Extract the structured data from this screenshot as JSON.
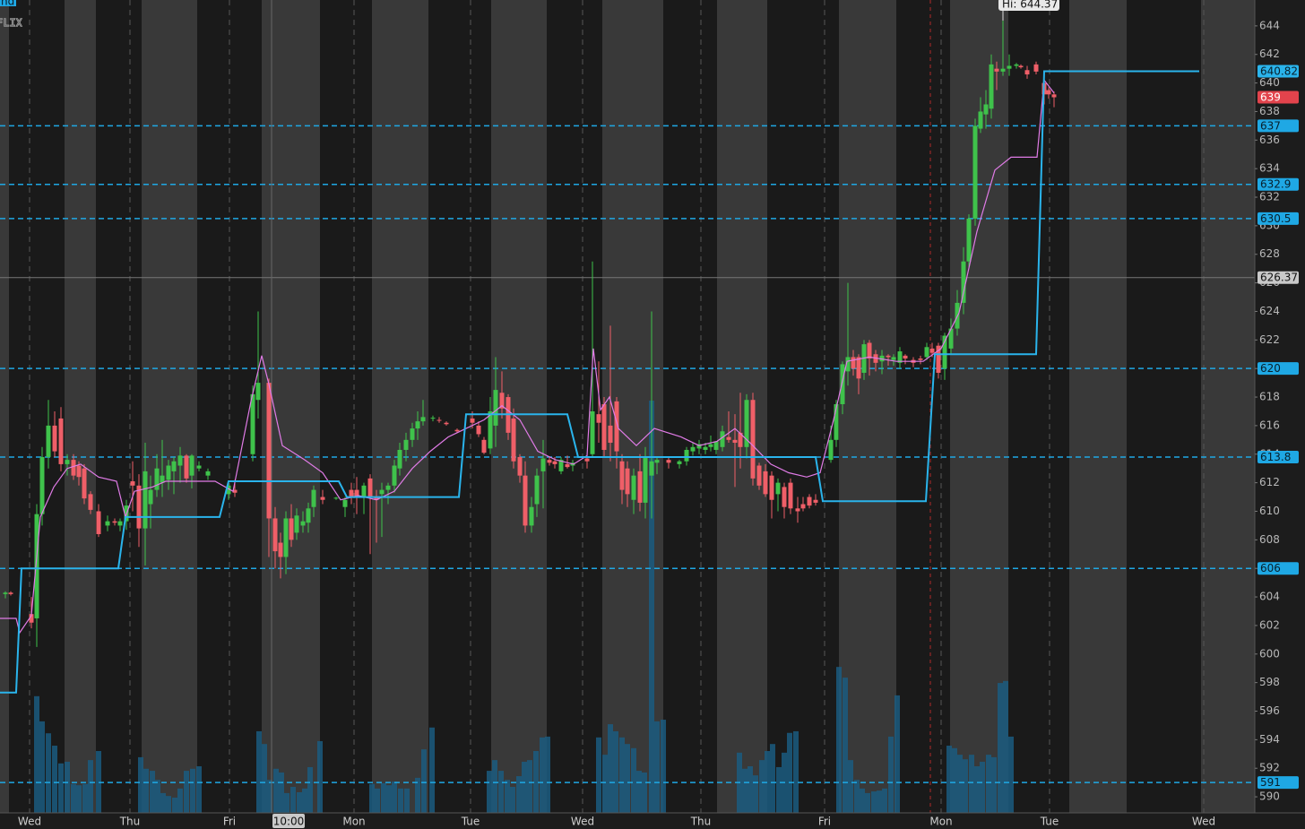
{
  "chart_data": {
    "type": "candlestick",
    "symbol": "FLIX",
    "corner_badge": "nd",
    "xlim": [
      0,
      140
    ],
    "xticks": [
      {
        "value": 3.3,
        "label": "Wed"
      },
      {
        "value": 14.5,
        "label": "Thu"
      },
      {
        "value": 25.6,
        "label": "Fri"
      },
      {
        "value": 39.5,
        "label": "Mon"
      },
      {
        "value": 52.5,
        "label": "Tue"
      },
      {
        "value": 65.0,
        "label": "Wed"
      },
      {
        "value": 78.2,
        "label": "Thu"
      },
      {
        "value": 92.0,
        "label": "Fri"
      },
      {
        "value": 105.0,
        "label": "Mon"
      },
      {
        "value": 117.1,
        "label": "Tue"
      },
      {
        "value": 134.3,
        "label": "Wed"
      }
    ],
    "ylim": [
      588.875,
      645.8125
    ],
    "yticks": [
      590,
      592,
      594,
      596,
      598,
      600,
      602,
      604,
      606,
      608,
      610,
      612,
      614,
      616,
      618,
      620,
      622,
      624,
      626,
      628,
      630,
      632,
      634,
      636,
      638,
      640,
      642,
      644
    ],
    "up_color": "#3fc24b",
    "down_color": "#ef5f68",
    "candles": {
      "x": [
        0.6,
        1.2,
        3.5,
        4.1,
        4.7,
        5.4,
        6.1,
        6.8,
        7.5,
        8.2,
        8.8,
        9.4,
        10.1,
        11.0,
        12.0,
        12.8,
        13.4,
        14.1,
        14.8,
        15.5,
        16.2,
        16.8,
        17.5,
        18.1,
        18.8,
        19.4,
        20.1,
        20.8,
        21.4,
        22.2,
        23.2,
        25.5,
        26.2,
        28.2,
        28.8,
        30.0,
        30.7,
        31.3,
        31.9,
        32.5,
        33.1,
        33.8,
        34.4,
        35.0,
        36.0,
        37.5,
        38.5,
        39.2,
        39.8,
        40.6,
        41.3,
        42.0,
        42.6,
        43.3,
        44.0,
        44.6,
        45.3,
        46.0,
        46.6,
        47.2,
        48.3,
        49.0,
        49.8,
        51.0,
        52.7,
        53.4,
        54.0,
        54.7,
        55.3,
        56.0,
        56.7,
        57.3,
        58.0,
        58.6,
        59.3,
        59.9,
        60.6,
        61.3,
        61.9,
        62.6,
        63.3,
        63.9,
        65.5,
        66.1,
        66.8,
        67.4,
        68.1,
        68.8,
        69.4,
        70.0,
        70.7,
        71.4,
        72.0,
        72.7,
        73.3,
        74.6,
        75.8,
        76.6,
        77.3,
        78.0,
        78.7,
        79.3,
        79.9,
        80.6,
        81.3,
        82.0,
        82.6,
        83.3,
        84.0,
        84.7,
        85.4,
        86.1,
        86.8,
        87.5,
        88.2,
        89.0,
        89.6,
        90.3,
        91.0,
        92.7,
        93.3,
        94.0,
        94.6,
        95.2,
        95.8,
        96.4,
        97.0,
        97.7,
        98.4,
        99.1,
        99.7,
        100.4,
        101.0,
        101.9,
        102.7,
        103.4,
        104.0,
        104.7,
        105.4,
        106.1,
        106.8,
        107.5,
        108.1,
        108.8,
        109.4,
        110.0,
        110.6,
        111.2,
        111.9,
        112.6,
        113.4,
        113.9,
        114.6,
        115.6,
        116.5,
        117.0,
        117.6
      ],
      "open": [
        604.2,
        604.3,
        602.8,
        602.5,
        609.8,
        613.8,
        616.0,
        616.5,
        613.3,
        613.6,
        613.2,
        613.0,
        611.2,
        610.0,
        609.0,
        609.3,
        609.0,
        609.3,
        612.1,
        611.8,
        608.8,
        610.5,
        611.5,
        612.0,
        612.2,
        612.8,
        613.2,
        613.9,
        612.5,
        613.0,
        612.5,
        611.2,
        611.5,
        614.0,
        617.8,
        619.0,
        609.5,
        607.8,
        606.8,
        609.5,
        608.5,
        609.0,
        609.2,
        610.3,
        611.0,
        610.9,
        610.3,
        611.5,
        611.5,
        611.0,
        612.3,
        611.0,
        611.2,
        611.5,
        611.8,
        613.0,
        614.3,
        615.0,
        615.8,
        616.3,
        616.5,
        616.4,
        616.2,
        615.7,
        616.5,
        616.0,
        615.0,
        614.4,
        616.0,
        618.3,
        618.0,
        616.5,
        613.8,
        612.5,
        609.0,
        610.5,
        612.8,
        613.6,
        613.5,
        612.8,
        613.3,
        613.2,
        613.7,
        614.0,
        616.8,
        617.5,
        616.0,
        617.7,
        613.5,
        613.0,
        610.8,
        612.8,
        610.6,
        612.5,
        613.4,
        613.6,
        613.3,
        613.5,
        614.2,
        614.4,
        614.3,
        614.5,
        614.3,
        614.5,
        615.2,
        615.0,
        615.5,
        614.5,
        617.8,
        613.2,
        612.8,
        612.5,
        611.2,
        611.7,
        612.0,
        610.2,
        610.5,
        611.0,
        610.8,
        613.6,
        615.0,
        617.5,
        619.8,
        620.8,
        620.8,
        619.7,
        621.8,
        621.0,
        620.5,
        620.9,
        620.6,
        620.4,
        620.9,
        620.6,
        620.7,
        620.8,
        621.4,
        621.6,
        620.0,
        621.4,
        622.8,
        624.6,
        627.5,
        630.5,
        636.8,
        637.8,
        638.2,
        641.0,
        640.8,
        641.0,
        641.2,
        641.2,
        640.9,
        641.3,
        640.0,
        639.5,
        639.2
      ],
      "high": [
        604.4,
        604.4,
        604.0,
        610.5,
        614.5,
        617.8,
        617.0,
        617.3,
        614.0,
        614.0,
        613.5,
        613.3,
        611.4,
        610.5,
        609.7,
        609.5,
        609.5,
        610.8,
        613.5,
        612.6,
        614.8,
        612.5,
        614.0,
        615.0,
        613.6,
        613.8,
        614.5,
        614.0,
        614.0,
        613.5,
        613.0,
        612.0,
        612.2,
        618.8,
        624.0,
        619.3,
        610.3,
        608.5,
        610.0,
        610.5,
        610.2,
        610.0,
        610.6,
        611.8,
        611.5,
        611.0,
        611.0,
        612.0,
        612.4,
        612.0,
        612.6,
        611.5,
        612.0,
        612.0,
        613.6,
        614.8,
        615.5,
        616.2,
        617.0,
        617.8,
        616.7,
        616.6,
        616.3,
        615.8,
        617.0,
        616.3,
        615.2,
        618.0,
        620.8,
        619.8,
        618.2,
        617.2,
        614.0,
        613.5,
        611.0,
        613.0,
        615.0,
        613.8,
        613.8,
        613.8,
        613.9,
        613.6,
        614.0,
        627.5,
        620.5,
        618.0,
        623.0,
        618.0,
        614.0,
        613.5,
        613.0,
        614.0,
        614.5,
        624.0,
        613.8,
        613.8,
        613.6,
        614.5,
        614.8,
        615.0,
        614.8,
        615.3,
        614.8,
        616.0,
        617.0,
        616.8,
        618.3,
        618.2,
        618.3,
        613.4,
        613.3,
        612.8,
        612.3,
        612.0,
        612.3,
        611.0,
        611.0,
        611.2,
        611.2,
        616.0,
        617.8,
        620.5,
        626.0,
        621.3,
        621.0,
        622.0,
        622.0,
        621.3,
        621.3,
        621.0,
        621.0,
        621.5,
        621.0,
        620.8,
        620.9,
        621.8,
        621.8,
        621.8,
        622.5,
        623.5,
        625.5,
        628.5,
        630.8,
        637.5,
        639.0,
        639.5,
        642.0,
        641.5,
        644.37,
        642.0,
        641.4,
        641.3,
        641.2,
        641.5,
        640.6,
        639.7,
        639.4
      ],
      "low": [
        603.9,
        604.1,
        601.8,
        600.5,
        609.0,
        613.0,
        613.8,
        612.8,
        612.5,
        612.2,
        611.8,
        610.5,
        609.8,
        608.2,
        608.6,
        609.0,
        608.6,
        608.7,
        610.0,
        607.5,
        606.2,
        608.8,
        611.0,
        611.0,
        611.5,
        611.2,
        612.0,
        612.0,
        611.6,
        612.8,
        612.2,
        610.8,
        611.0,
        613.5,
        616.5,
        606.8,
        606.0,
        605.3,
        605.6,
        607.5,
        608.0,
        608.5,
        608.5,
        609.6,
        610.5,
        610.8,
        609.6,
        610.5,
        609.8,
        609.8,
        607.0,
        607.8,
        608.2,
        610.5,
        611.3,
        612.5,
        613.5,
        614.5,
        615.0,
        616.0,
        616.3,
        616.2,
        616.0,
        615.5,
        615.8,
        615.2,
        614.0,
        614.0,
        614.5,
        616.5,
        615.0,
        613.0,
        612.0,
        608.5,
        608.5,
        609.6,
        610.2,
        613.2,
        613.0,
        612.6,
        613.0,
        612.8,
        613.0,
        613.8,
        614.8,
        613.8,
        613.5,
        613.0,
        610.5,
        610.3,
        609.8,
        610.0,
        609.5,
        609.5,
        612.6,
        613.0,
        613.0,
        613.2,
        613.9,
        614.0,
        614.0,
        614.2,
        614.0,
        614.2,
        614.8,
        611.7,
        613.0,
        613.7,
        611.8,
        611.5,
        611.0,
        609.5,
        610.0,
        609.5,
        609.8,
        609.2,
        610.0,
        610.2,
        610.4,
        613.4,
        614.5,
        616.8,
        618.8,
        619.5,
        618.2,
        619.2,
        619.5,
        619.8,
        619.6,
        620.2,
        620.2,
        620.0,
        620.3,
        620.1,
        620.3,
        620.6,
        620.8,
        619.3,
        619.2,
        621.0,
        622.3,
        623.8,
        627.0,
        630.0,
        636.5,
        636.8,
        637.5,
        639.5,
        640.5,
        640.5,
        641.0,
        641.0,
        640.3,
        640.6,
        638.5,
        638.9,
        638.3
      ],
      "close": [
        604.3,
        604.2,
        602.2,
        609.8,
        613.8,
        616.0,
        614.2,
        613.3,
        613.6,
        612.5,
        612.4,
        610.9,
        610.1,
        608.4,
        609.3,
        609.2,
        609.3,
        610.4,
        611.8,
        608.8,
        612.8,
        611.5,
        613.0,
        612.5,
        613.2,
        613.5,
        613.9,
        612.3,
        613.9,
        613.2,
        612.8,
        611.8,
        611.3,
        618.2,
        619.0,
        609.5,
        607.2,
        606.8,
        609.5,
        608.0,
        609.7,
        609.3,
        610.2,
        611.5,
        610.8,
        610.95,
        610.8,
        611.0,
        611.0,
        611.8,
        611.0,
        610.8,
        611.5,
        611.8,
        613.2,
        614.3,
        615.0,
        615.8,
        616.3,
        616.6,
        616.55,
        616.35,
        616.1,
        615.6,
        616.2,
        615.4,
        614.1,
        617.0,
        618.5,
        617.2,
        615.5,
        613.5,
        612.5,
        609.0,
        610.3,
        612.5,
        613.7,
        613.4,
        613.3,
        613.6,
        613.1,
        613.4,
        613.5,
        617.0,
        616.2,
        614.3,
        614.8,
        614.2,
        611.5,
        611.2,
        612.5,
        610.6,
        613.8,
        613.5,
        613.6,
        613.4,
        613.5,
        614.3,
        614.5,
        614.7,
        614.5,
        614.7,
        614.9,
        615.6,
        615.0,
        614.8,
        614.5,
        617.8,
        612.3,
        611.8,
        611.2,
        610.8,
        612.0,
        610.3,
        610.2,
        610.0,
        610.2,
        610.4,
        610.6,
        615.0,
        617.5,
        620.3,
        620.8,
        620.0,
        619.3,
        621.7,
        620.7,
        620.4,
        620.9,
        620.8,
        620.8,
        621.2,
        620.7,
        620.4,
        620.6,
        621.5,
        621.1,
        619.7,
        622.3,
        622.8,
        624.6,
        627.5,
        630.5,
        637.0,
        638.0,
        638.5,
        641.3,
        640.8,
        641.0,
        641.2,
        641.3,
        641.1,
        640.6,
        640.8,
        639.2,
        639.2,
        639.0
      ]
    },
    "overlays": [
      {
        "color": "#e07be6",
        "width": 1.2,
        "x": [
          0,
          1.8,
          2.2,
          3.5,
          4.5,
          6.0,
          7.5,
          9.0,
          11.0,
          13.0,
          14.0,
          15.0,
          17.0,
          18.5,
          21.0,
          24.0,
          26.0,
          28.0,
          29.2,
          30.0,
          31.5,
          34.0,
          36.0,
          38.0,
          40.0,
          42.0,
          44.0,
          46.0,
          48.0,
          50.0,
          52.0,
          54.0,
          56.0,
          58.0,
          60.0,
          62.0,
          64.0,
          65.5,
          66.2,
          67.0,
          68.0,
          69.0,
          71.0,
          73.0,
          76.0,
          78.0,
          80.0,
          82.0,
          84.0,
          86.0,
          88.0,
          90.0,
          91.5,
          93.0,
          94.5,
          97.0,
          100.0,
          103.0,
          105.0,
          107.0,
          109.0,
          111.0,
          112.8,
          115.7,
          116.5,
          117.6
        ],
        "values": [
          602.5,
          602.5,
          601.5,
          602.7,
          609.6,
          611.7,
          613.0,
          613.3,
          612.4,
          612.1,
          609.6,
          611.4,
          611.7,
          612.1,
          612.1,
          612.1,
          611.4,
          617.7,
          620.9,
          618.9,
          614.6,
          613.6,
          612.7,
          610.8,
          611.1,
          610.8,
          611.4,
          613.0,
          614.2,
          615.2,
          615.8,
          616.4,
          617.4,
          616.4,
          614.2,
          613.6,
          613.3,
          613.9,
          621.4,
          617.1,
          618.0,
          615.8,
          614.6,
          615.8,
          615.2,
          614.6,
          614.9,
          615.8,
          614.6,
          613.3,
          612.7,
          612.4,
          612.7,
          616.4,
          620.5,
          620.8,
          620.5,
          620.5,
          621.4,
          623.9,
          629.6,
          633.9,
          634.8,
          634.8,
          640.2,
          639.3
        ]
      },
      {
        "color": "#2ab4ec",
        "width": 2,
        "x": [
          0,
          1.8,
          2.4,
          13.2,
          14.0,
          24.5,
          25.5,
          37.8,
          38.7,
          51.2,
          52.0,
          63.3,
          64.5,
          91.0,
          91.8,
          103.3,
          104.3,
          115.6,
          116.5,
          133.8
        ],
        "values": [
          597.3,
          597.3,
          606,
          606,
          609.6,
          609.6,
          612.1,
          612.1,
          611.0,
          611.0,
          616.8,
          616.8,
          613.8,
          613.8,
          610.7,
          610.7,
          621.0,
          621.0,
          640.82,
          640.82
        ]
      }
    ],
    "volume": {
      "color": "#1b5c80",
      "ylim": [
        0,
        100
      ],
      "x": [
        4.1,
        4.7,
        5.4,
        6.1,
        6.8,
        7.5,
        8.2,
        8.8,
        9.5,
        10.1,
        11.0,
        15.7,
        16.3,
        17.0,
        17.6,
        18.2,
        18.8,
        19.5,
        20.1,
        20.8,
        21.5,
        22.2,
        28.9,
        29.5,
        30.1,
        30.8,
        31.4,
        32.0,
        32.7,
        33.4,
        34.0,
        34.6,
        35.7,
        41.5,
        42.1,
        42.8,
        43.4,
        44.0,
        44.7,
        45.4,
        46.6,
        47.3,
        48.2,
        54.6,
        55.2,
        55.9,
        56.6,
        57.2,
        57.9,
        58.5,
        59.1,
        59.8,
        60.5,
        61.1,
        66.8,
        67.5,
        68.1,
        68.7,
        69.4,
        70.0,
        70.7,
        71.3,
        71.9,
        72.7,
        73.3,
        74.0,
        82.5,
        83.1,
        83.7,
        84.3,
        85.0,
        85.6,
        86.2,
        86.9,
        87.5,
        88.1,
        88.8,
        93.6,
        94.3,
        94.9,
        95.6,
        96.2,
        96.8,
        97.5,
        98.1,
        98.7,
        99.4,
        100.1,
        105.9,
        106.5,
        107.1,
        107.7,
        108.4,
        109.0,
        109.6,
        110.3,
        110.9,
        111.6,
        112.2,
        112.8
      ],
      "values": [
        28.3,
        22.2,
        19.3,
        16.3,
        12.0,
        12.4,
        7.0,
        6.7,
        7.0,
        12.8,
        15.0,
        13.5,
        10.7,
        10.2,
        8.0,
        4.8,
        4.1,
        3.7,
        5.9,
        10.2,
        10.7,
        11.3,
        19.8,
        16.7,
        8.0,
        10.7,
        9.8,
        4.8,
        6.3,
        5.0,
        5.9,
        11.1,
        17.4,
        7.0,
        5.9,
        7.2,
        6.7,
        7.6,
        5.9,
        5.9,
        8.5,
        15.4,
        20.7,
        10.2,
        12.8,
        10.2,
        8.0,
        6.3,
        8.9,
        12.4,
        12.8,
        15.0,
        18.3,
        18.5,
        18.3,
        14.1,
        21.5,
        19.8,
        18.3,
        16.7,
        15.7,
        10.2,
        9.8,
        100,
        22.2,
        22.6,
        14.6,
        10.7,
        11.3,
        9.1,
        12.8,
        15.0,
        16.7,
        11.1,
        14.6,
        19.4,
        19.8,
        35.4,
        32.8,
        12.8,
        8.0,
        5.9,
        4.8,
        5.2,
        5.4,
        5.9,
        18.5,
        28.5,
        16.3,
        15.7,
        14.1,
        13.0,
        14.1,
        11.3,
        12.4,
        14.1,
        13.5,
        31.5,
        32.0,
        18.5
      ]
    },
    "levels": [
      637,
      632.9,
      630.5,
      620,
      613.8,
      606,
      591
    ],
    "level_color": "#1fa8e4",
    "line_price": 640.82,
    "last_price": 639,
    "crosshair": {
      "x": {
        "value": 30.3,
        "label": "10:00"
      },
      "y": 626.37
    },
    "high_marker": {
      "value": 644.37,
      "label": "Hi: 644.37"
    }
  }
}
